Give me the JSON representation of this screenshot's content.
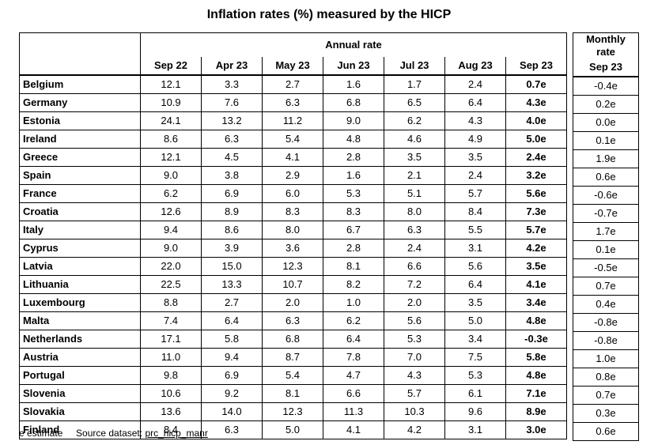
{
  "title": "Inflation rates (%) measured by the HICP",
  "annual_header": "Annual rate",
  "monthly_header_line1": "Monthly",
  "monthly_header_line2": "rate",
  "columns": [
    "Sep 22",
    "Apr 23",
    "May 23",
    "Jun 23",
    "Jul 23",
    "Aug 23",
    "Sep 23"
  ],
  "monthly_column": "Sep 23",
  "rows": [
    {
      "country": "Belgium",
      "values": [
        "12.1",
        "3.3",
        "2.7",
        "1.6",
        "1.7",
        "2.4",
        "0.7e"
      ],
      "monthly": "-0.4e"
    },
    {
      "country": "Germany",
      "values": [
        "10.9",
        "7.6",
        "6.3",
        "6.8",
        "6.5",
        "6.4",
        "4.3e"
      ],
      "monthly": "0.2e"
    },
    {
      "country": "Estonia",
      "values": [
        "24.1",
        "13.2",
        "11.2",
        "9.0",
        "6.2",
        "4.3",
        "4.0e"
      ],
      "monthly": "0.0e"
    },
    {
      "country": "Ireland",
      "values": [
        "8.6",
        "6.3",
        "5.4",
        "4.8",
        "4.6",
        "4.9",
        "5.0e"
      ],
      "monthly": "0.1e"
    },
    {
      "country": "Greece",
      "values": [
        "12.1",
        "4.5",
        "4.1",
        "2.8",
        "3.5",
        "3.5",
        "2.4e"
      ],
      "monthly": "1.9e"
    },
    {
      "country": "Spain",
      "values": [
        "9.0",
        "3.8",
        "2.9",
        "1.6",
        "2.1",
        "2.4",
        "3.2e"
      ],
      "monthly": "0.6e"
    },
    {
      "country": "France",
      "values": [
        "6.2",
        "6.9",
        "6.0",
        "5.3",
        "5.1",
        "5.7",
        "5.6e"
      ],
      "monthly": "-0.6e"
    },
    {
      "country": "Croatia",
      "values": [
        "12.6",
        "8.9",
        "8.3",
        "8.3",
        "8.0",
        "8.4",
        "7.3e"
      ],
      "monthly": "-0.7e"
    },
    {
      "country": "Italy",
      "values": [
        "9.4",
        "8.6",
        "8.0",
        "6.7",
        "6.3",
        "5.5",
        "5.7e"
      ],
      "monthly": "1.7e"
    },
    {
      "country": "Cyprus",
      "values": [
        "9.0",
        "3.9",
        "3.6",
        "2.8",
        "2.4",
        "3.1",
        "4.2e"
      ],
      "monthly": "0.1e"
    },
    {
      "country": "Latvia",
      "values": [
        "22.0",
        "15.0",
        "12.3",
        "8.1",
        "6.6",
        "5.6",
        "3.5e"
      ],
      "monthly": "-0.5e"
    },
    {
      "country": "Lithuania",
      "values": [
        "22.5",
        "13.3",
        "10.7",
        "8.2",
        "7.2",
        "6.4",
        "4.1e"
      ],
      "monthly": "0.7e"
    },
    {
      "country": "Luxembourg",
      "values": [
        "8.8",
        "2.7",
        "2.0",
        "1.0",
        "2.0",
        "3.5",
        "3.4e"
      ],
      "monthly": "0.4e"
    },
    {
      "country": "Malta",
      "values": [
        "7.4",
        "6.4",
        "6.3",
        "6.2",
        "5.6",
        "5.0",
        "4.8e"
      ],
      "monthly": "-0.8e"
    },
    {
      "country": "Netherlands",
      "values": [
        "17.1",
        "5.8",
        "6.8",
        "6.4",
        "5.3",
        "3.4",
        "-0.3e"
      ],
      "monthly": "-0.8e"
    },
    {
      "country": "Austria",
      "values": [
        "11.0",
        "9.4",
        "8.7",
        "7.8",
        "7.0",
        "7.5",
        "5.8e"
      ],
      "monthly": "1.0e"
    },
    {
      "country": "Portugal",
      "values": [
        "9.8",
        "6.9",
        "5.4",
        "4.7",
        "4.3",
        "5.3",
        "4.8e"
      ],
      "monthly": "0.8e"
    },
    {
      "country": "Slovenia",
      "values": [
        "10.6",
        "9.2",
        "8.1",
        "6.6",
        "5.7",
        "6.1",
        "7.1e"
      ],
      "monthly": "0.7e"
    },
    {
      "country": "Slovakia",
      "values": [
        "13.6",
        "14.0",
        "12.3",
        "11.3",
        "10.3",
        "9.6",
        "8.9e"
      ],
      "monthly": "0.3e"
    },
    {
      "country": "Finland",
      "values": [
        "8.4",
        "6.3",
        "5.0",
        "4.1",
        "4.2",
        "3.1",
        "3.0e"
      ],
      "monthly": "0.6e"
    }
  ],
  "footer": {
    "estimate_note": "e estimate",
    "source_label": "Source dataset:",
    "source_link": "prc_hicp_manr"
  }
}
